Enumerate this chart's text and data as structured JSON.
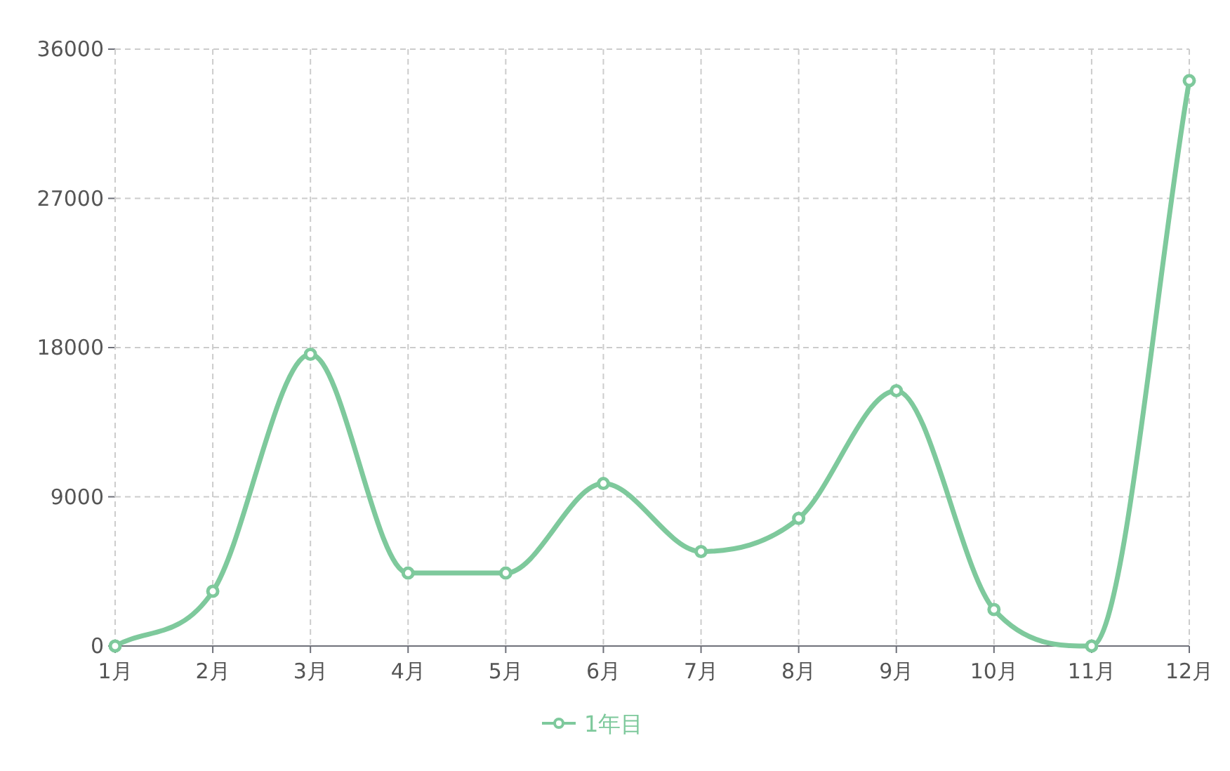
{
  "chart_data": {
    "type": "line",
    "categories": [
      "1月",
      "2月",
      "3月",
      "4月",
      "5月",
      "6月",
      "7月",
      "8月",
      "9月",
      "10月",
      "11月",
      "12月"
    ],
    "series": [
      {
        "name": "1年目",
        "color": "#7ec99c",
        "values": [
          0,
          3300,
          17600,
          4400,
          4400,
          9800,
          5700,
          7700,
          15400,
          2200,
          0,
          34100
        ]
      }
    ],
    "ylim": [
      0,
      36000
    ],
    "yticks": [
      0,
      9000,
      18000,
      27000,
      36000
    ],
    "grid": true,
    "legend": "bottom",
    "marker": "circle",
    "line_style": "solid"
  }
}
